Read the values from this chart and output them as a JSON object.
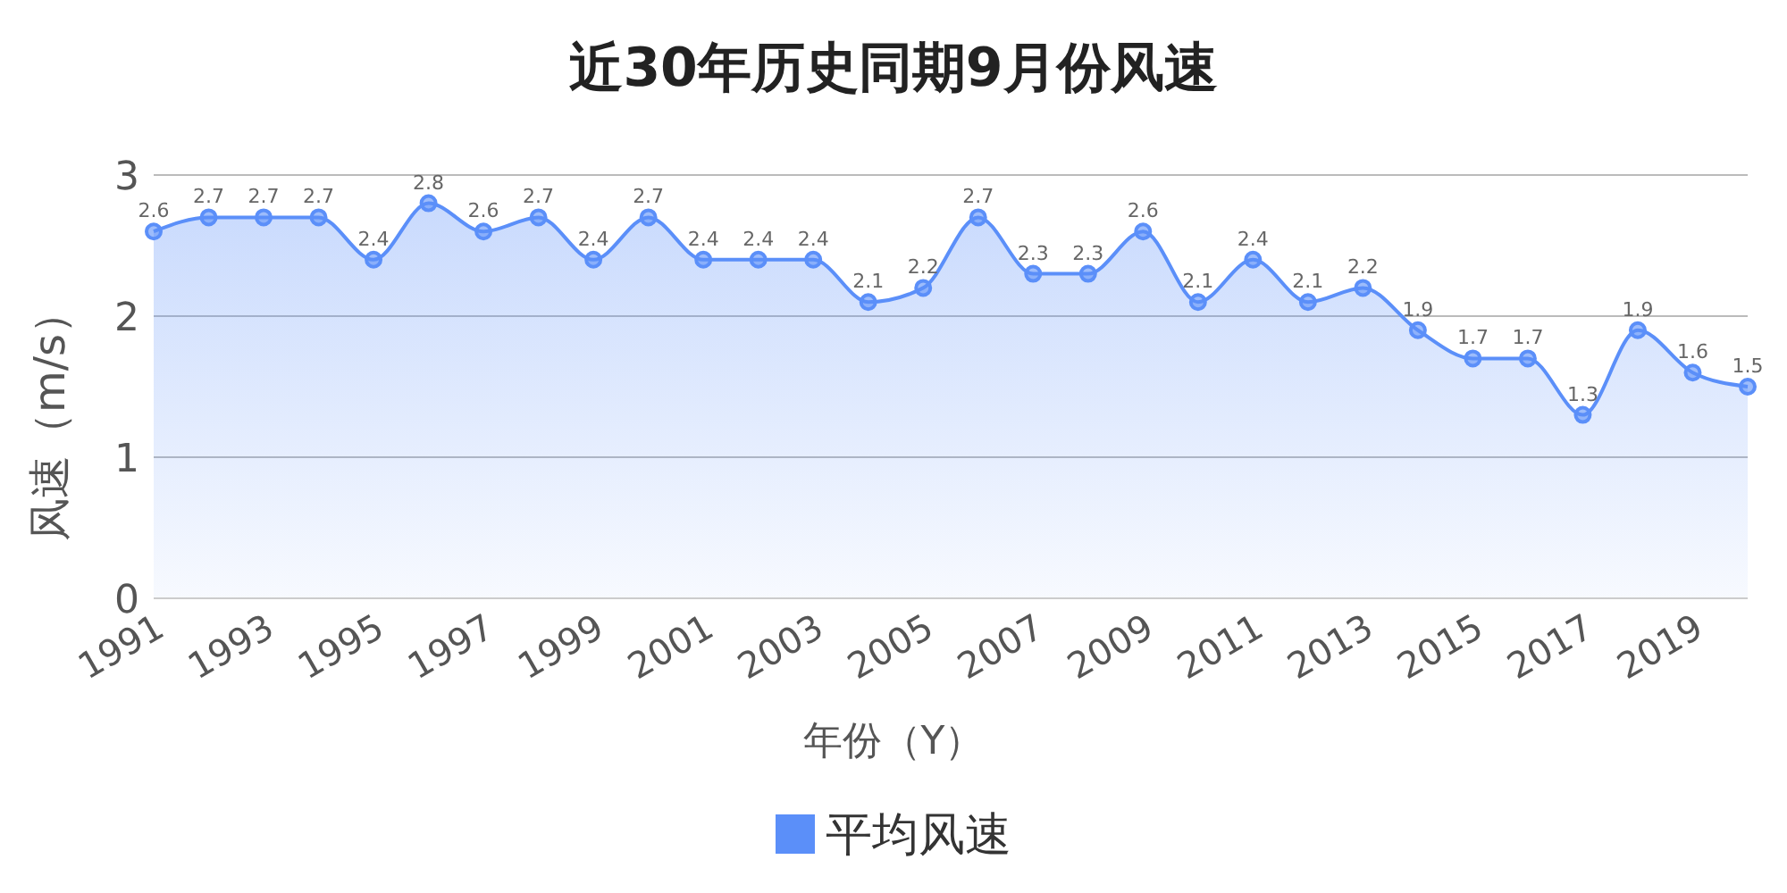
{
  "chart_data": {
    "type": "area",
    "title": "近30年历史同期9月份风速",
    "xlabel": "年份（Y）",
    "ylabel": "风速（m/s）",
    "categories": [
      "1991",
      null,
      "1993",
      null,
      "1995",
      null,
      "1997",
      null,
      "1999",
      null,
      "2001",
      null,
      "2003",
      null,
      "2005",
      null,
      "2007",
      null,
      "2009",
      null,
      "2011",
      null,
      "2013",
      null,
      "2015",
      null,
      "2017",
      null,
      "2019",
      null
    ],
    "series": [
      {
        "name": "平均风速",
        "color": "#5b8ff9",
        "values": [
          2.6,
          2.7,
          2.7,
          2.7,
          2.4,
          2.8,
          2.6,
          2.7,
          2.4,
          2.7,
          2.4,
          2.4,
          2.4,
          2.1,
          2.2,
          2.7,
          2.3,
          2.3,
          2.6,
          2.1,
          2.4,
          2.1,
          2.2,
          1.9,
          1.7,
          1.7,
          1.3,
          1.9,
          1.6,
          1.5
        ]
      }
    ],
    "ylim": [
      0,
      3
    ],
    "yticks": [
      0,
      1,
      2,
      3
    ],
    "grid": "y",
    "legend": "bottom",
    "marker": "circle",
    "data_labels": true
  }
}
